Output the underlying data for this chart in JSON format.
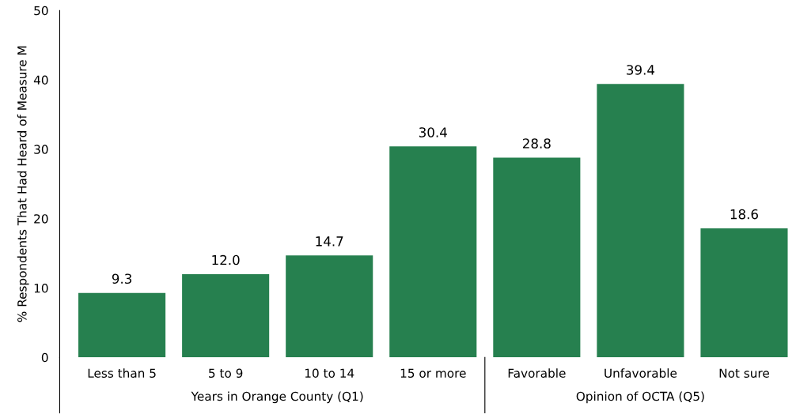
{
  "chart_data": {
    "type": "bar",
    "ylabel": "% Respondents That Had Heard of Measure M",
    "categories": [
      "Less than 5",
      "5 to 9",
      "10 to 14",
      "15 or more",
      "Favorable",
      "Unfavorable",
      "Not sure"
    ],
    "values": [
      9.3,
      12.0,
      14.7,
      30.4,
      28.8,
      39.4,
      18.6
    ],
    "value_labels": [
      "9.3",
      "12.0",
      "14.7",
      "30.4",
      "28.8",
      "39.4",
      "18.6"
    ],
    "color": "#26804f",
    "ylim": [
      0,
      50
    ],
    "yticks": [
      0,
      10,
      20,
      30,
      40,
      50
    ],
    "grid": false,
    "annotations": [
      "Years in Orange County (Q1)",
      "Opinion of OCTA (Q5)"
    ]
  }
}
